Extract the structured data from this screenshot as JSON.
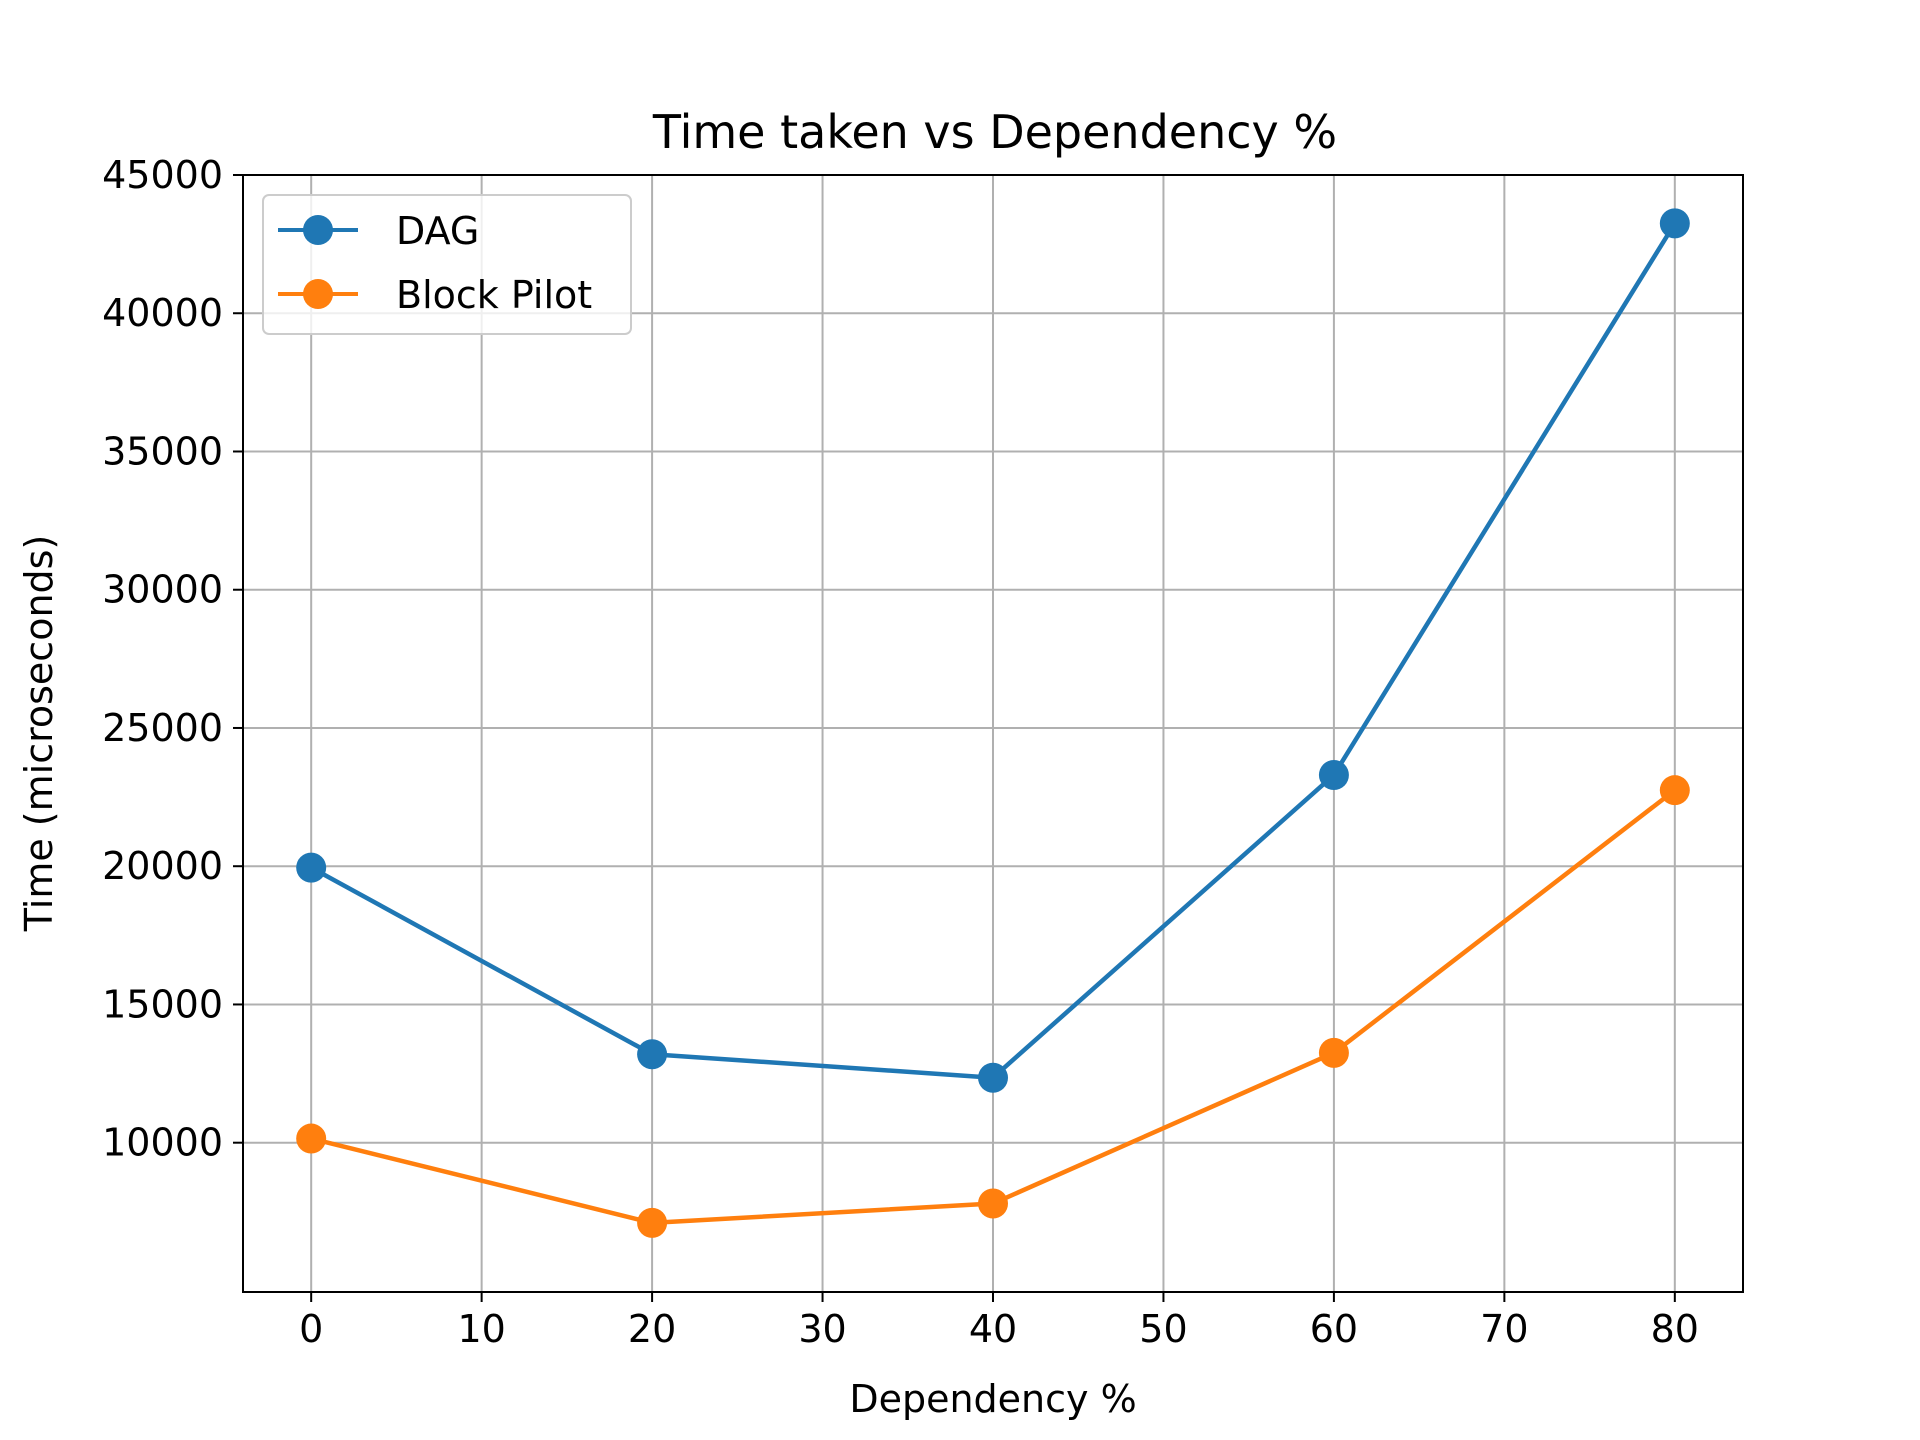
{
  "chart_data": {
    "type": "line",
    "title": "Time taken vs Dependency %",
    "xlabel": "Dependency %",
    "ylabel": "Time (microseconds)",
    "x": [
      0,
      20,
      40,
      60,
      80
    ],
    "xlim": [
      -4,
      84
    ],
    "ylim": [
      4600,
      45000
    ],
    "xticks": [
      0,
      10,
      20,
      30,
      40,
      50,
      60,
      70,
      80
    ],
    "xtick_labels": [
      "0",
      "10",
      "20",
      "30",
      "40",
      "50",
      "60",
      "70",
      "80"
    ],
    "yticks": [
      10000,
      15000,
      20000,
      25000,
      30000,
      35000,
      40000,
      45000
    ],
    "ytick_labels": [
      "10000",
      "15000",
      "20000",
      "25000",
      "30000",
      "35000",
      "40000",
      "45000"
    ],
    "grid": true,
    "legend_position": "top-left",
    "series": [
      {
        "name": "DAG",
        "color": "#1f77b4",
        "marker": "circle",
        "values": [
          19950,
          13200,
          12350,
          23300,
          43250
        ]
      },
      {
        "name": "Block Pilot",
        "color": "#ff7f0e",
        "marker": "circle",
        "values": [
          10150,
          7100,
          7800,
          13250,
          22750
        ]
      }
    ]
  }
}
